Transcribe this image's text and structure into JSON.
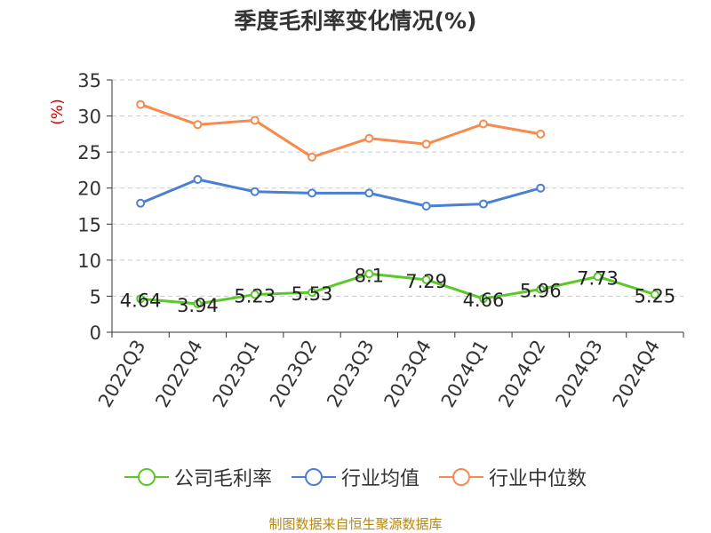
{
  "chart_data": {
    "type": "line",
    "title": "季度毛利率变化情况(%)",
    "ylabel": "(%)",
    "ylim": [
      0,
      35
    ],
    "yticks": [
      0,
      5,
      10,
      15,
      20,
      25,
      30,
      35
    ],
    "grid": true,
    "legend_position": "bottom",
    "categories": [
      "2022Q3",
      "2022Q4",
      "2023Q1",
      "2023Q2",
      "2023Q3",
      "2023Q4",
      "2024Q1",
      "2024Q2",
      "2024Q3",
      "2024Q4"
    ],
    "series": [
      {
        "name": "公司毛利率",
        "color": "#5cc72a",
        "values": [
          4.64,
          3.94,
          5.23,
          5.53,
          8.1,
          7.29,
          4.66,
          5.96,
          7.73,
          5.25
        ],
        "labels": [
          "4.64",
          "3.94",
          "5.23",
          "5.53",
          "8.1",
          "7.29",
          "4.66",
          "5.96",
          "7.73",
          "5.25"
        ]
      },
      {
        "name": "行业均值",
        "color": "#4a7fd6",
        "values": [
          17.9,
          21.2,
          19.5,
          19.3,
          19.3,
          17.5,
          17.8,
          20.0,
          null,
          null
        ]
      },
      {
        "name": "行业中位数",
        "color": "#f78b4e",
        "values": [
          31.6,
          28.8,
          29.4,
          24.3,
          26.9,
          26.1,
          28.9,
          27.5,
          null,
          null
        ]
      }
    ]
  },
  "source_note": "制图数据来自恒生聚源数据库"
}
